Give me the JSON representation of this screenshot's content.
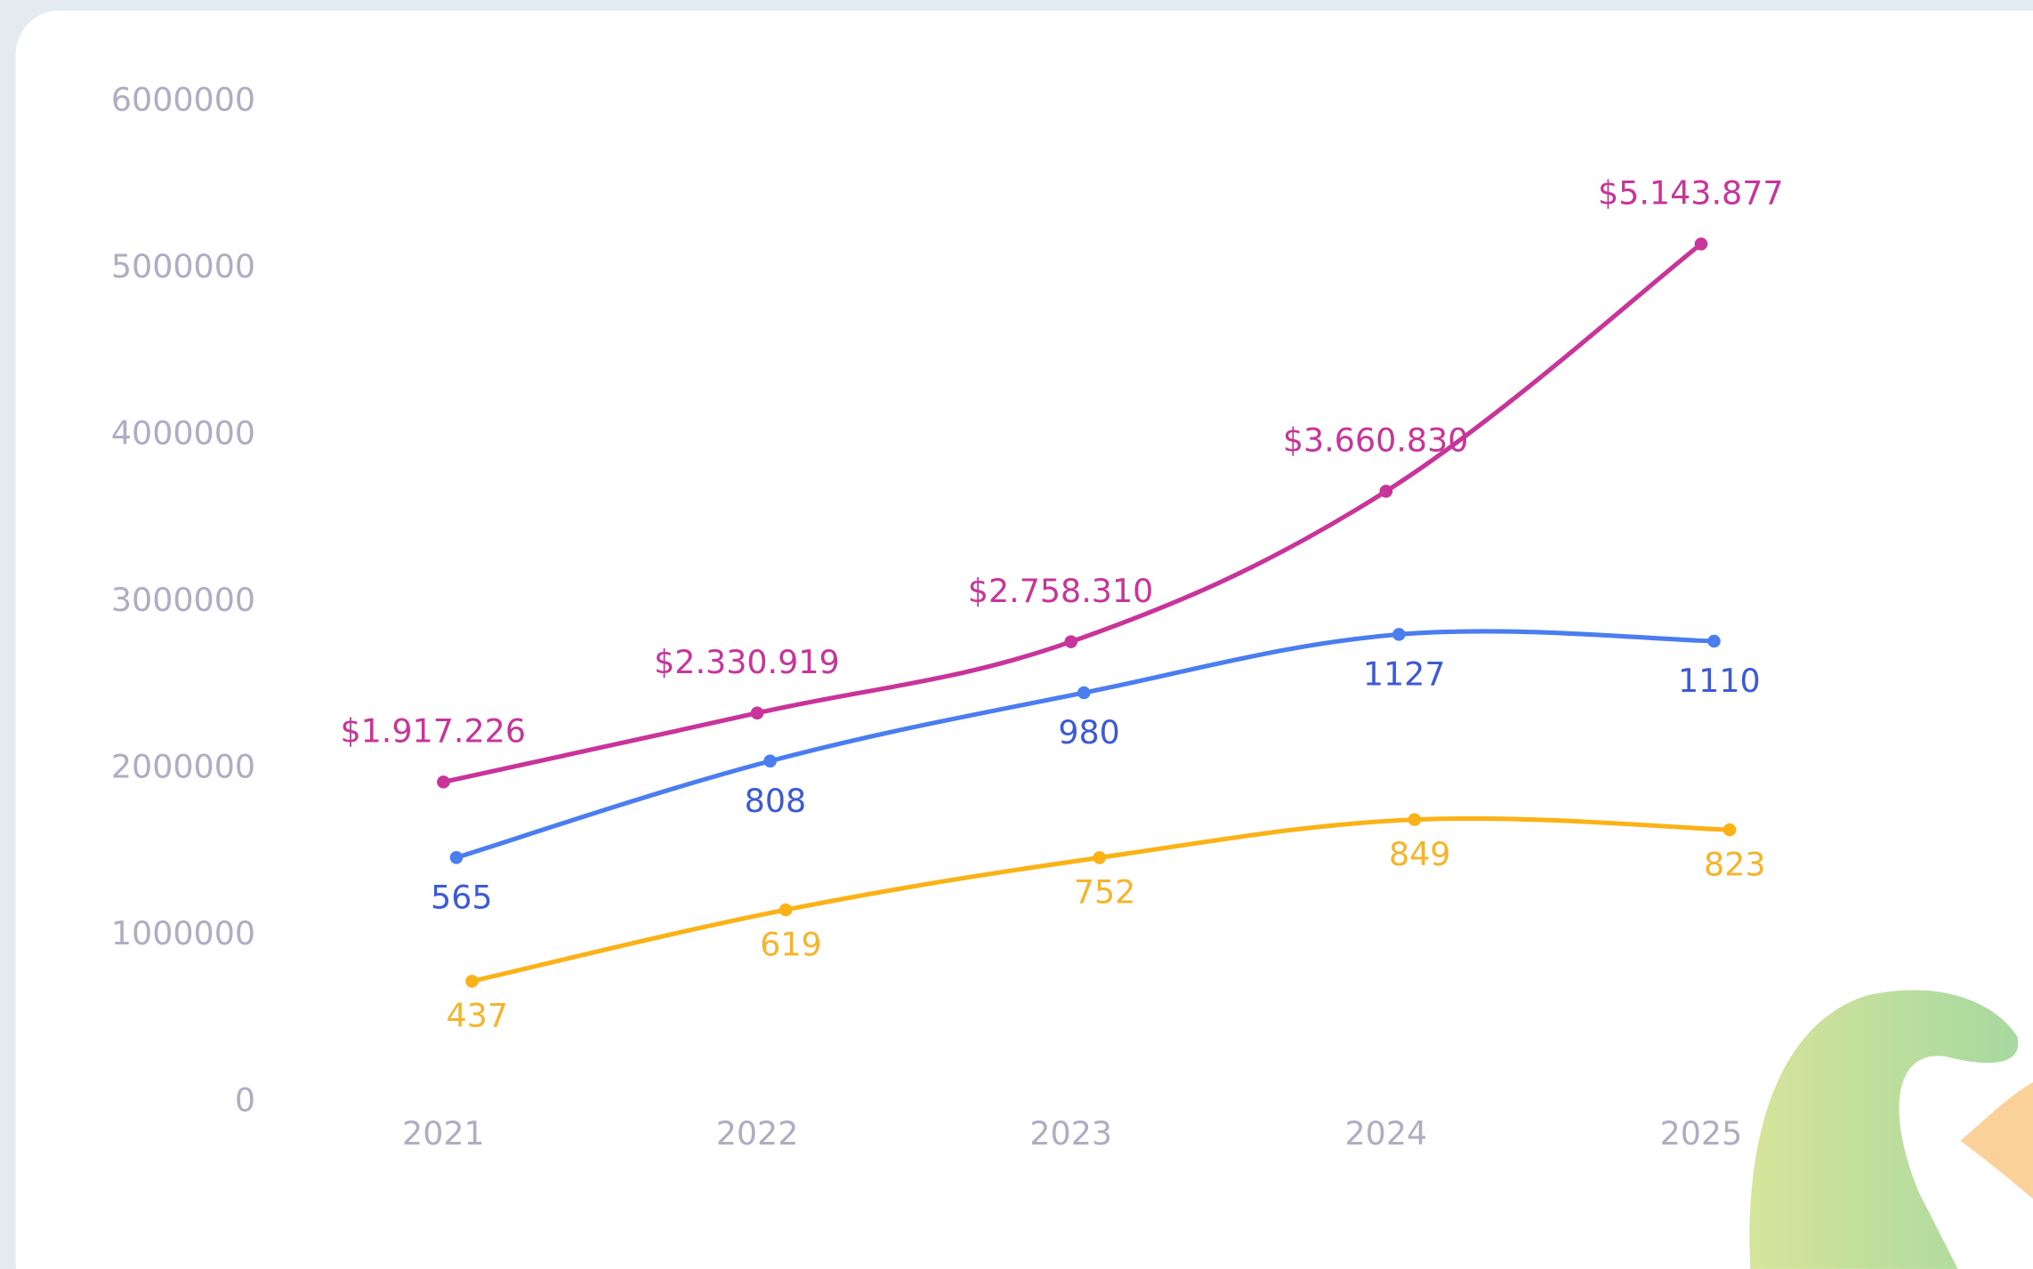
{
  "chart_data": {
    "type": "line",
    "categories": [
      "2021",
      "2022",
      "2023",
      "2024",
      "2025"
    ],
    "ylim": [
      0,
      6000000
    ],
    "yticks": [
      0,
      1000000,
      2000000,
      3000000,
      4000000,
      5000000,
      6000000
    ],
    "y2lim": [
      -50,
      2470
    ],
    "y3lim": [
      130,
      2680
    ],
    "series": [
      {
        "color": "#c9349a",
        "label_color": "#c9349a",
        "values": [
          1917226,
          2330919,
          2758310,
          3660830,
          5143877
        ],
        "value_labels": [
          "$1.917.226",
          "$2.330.919",
          "$2.758.310",
          "$3.660.830",
          "$5.143.877"
        ]
      },
      {
        "color": "#4a7ef0",
        "label_color": "#3d5ad6",
        "axis": "y2",
        "values": [
          565,
          808,
          980,
          1127,
          1110
        ]
      },
      {
        "color": "#fbb216",
        "label_color": "#f5b52a",
        "axis": "y3",
        "values": [
          437,
          619,
          752,
          849,
          823
        ]
      }
    ]
  }
}
